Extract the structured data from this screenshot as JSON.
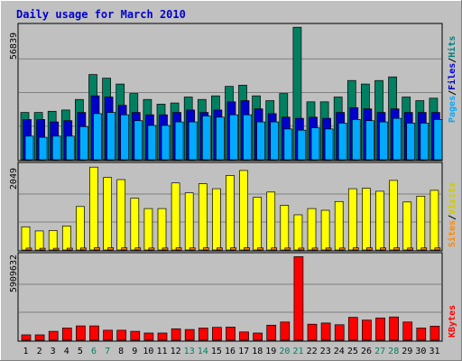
{
  "chart_data": {
    "type": "bar",
    "title": "Daily usage for March 2010",
    "categories": [
      "1",
      "2",
      "3",
      "4",
      "5",
      "6",
      "7",
      "8",
      "9",
      "10",
      "11",
      "12",
      "13",
      "14",
      "15",
      "16",
      "17",
      "18",
      "19",
      "20",
      "21",
      "22",
      "23",
      "24",
      "25",
      "26",
      "27",
      "28",
      "29",
      "30",
      "31"
    ],
    "weekend_days": [
      "6",
      "7",
      "13",
      "14",
      "20",
      "21",
      "27",
      "28"
    ],
    "panels": [
      {
        "name": "top",
        "ymax": 56839,
        "ytick_label": "56839",
        "right_label_parts": [
          "Pages",
          "/",
          "Files",
          "/",
          "Hits"
        ],
        "right_label_colors": [
          "#00aaff",
          "#000000",
          "#0000cc",
          "#000000",
          "#008080"
        ],
        "series": [
          {
            "name": "Hits",
            "color": "#008060",
            "values": [
              20000,
              20000,
              20500,
              21000,
              25500,
              36000,
              34500,
              32000,
              28000,
              25500,
              23500,
              24000,
              26500,
              25500,
              27000,
              31000,
              31500,
              27000,
              25000,
              28000,
              56000,
              24500,
              24500,
              26500,
              33500,
              32000,
              33500,
              35000,
              26500,
              25000,
              26000
            ]
          },
          {
            "name": "Files",
            "color": "#0000cc",
            "values": [
              17000,
              17000,
              16000,
              16500,
              20000,
              27000,
              26500,
              23000,
              20000,
              19000,
              19000,
              20000,
              21000,
              20000,
              21000,
              24500,
              25000,
              21500,
              19500,
              18000,
              17500,
              18000,
              17500,
              20000,
              22000,
              21500,
              20000,
              21500,
              20000,
              20000,
              20000
            ]
          },
          {
            "name": "Pages",
            "color": "#00aaff",
            "values": [
              10000,
              9500,
              10000,
              10000,
              14000,
              19500,
              20000,
              19000,
              16500,
              14500,
              14500,
              16000,
              16000,
              18500,
              18000,
              19000,
              19000,
              16000,
              16000,
              13000,
              12500,
              13500,
              13000,
              15500,
              17000,
              16500,
              16000,
              17500,
              15500,
              15500,
              17000
            ]
          }
        ]
      },
      {
        "name": "middle",
        "ymax": 2049,
        "ytick_label": "2049",
        "right_label_parts": [
          "Sites",
          "/",
          "Visits"
        ],
        "right_label_colors": [
          "#ff8800",
          "#000000",
          "#cccc00"
        ],
        "series": [
          {
            "name": "Visits",
            "color": "#ffff00",
            "values": [
              560,
              460,
              470,
              580,
              1050,
              2000,
              1750,
              1700,
              1250,
              1000,
              1000,
              1620,
              1380,
              1600,
              1480,
              1800,
              1920,
              1270,
              1400,
              1080,
              850,
              1000,
              960,
              1170,
              1480,
              1490,
              1420,
              1680,
              1160,
              1300,
              1440
            ]
          },
          {
            "name": "Sites",
            "color": "#ff8800",
            "values": [
              45,
              42,
              42,
              44,
              48,
              55,
              54,
              53,
              50,
              48,
              48,
              52,
              50,
              52,
              51,
              53,
              54,
              50,
              51,
              47,
              46,
              47,
              47,
              49,
              52,
              52,
              51,
              53,
              49,
              50,
              51
            ]
          }
        ]
      },
      {
        "name": "bottom",
        "ymax": 5909632,
        "ytick_label": "5909632",
        "right_label_parts": [
          "KBytes"
        ],
        "right_label_colors": [
          "#ff0000"
        ],
        "series": [
          {
            "name": "KBytes",
            "color": "#ff0000",
            "values": [
              380000,
              380000,
              620000,
              850000,
              1000000,
              1000000,
              700000,
              700000,
              620000,
              500000,
              500000,
              800000,
              750000,
              850000,
              900000,
              920000,
              580000,
              500000,
              1050000,
              1270000,
              5820000,
              1120000,
              1200000,
              1080000,
              1600000,
              1400000,
              1550000,
              1620000,
              1270000,
              850000,
              980000
            ]
          }
        ]
      }
    ]
  }
}
